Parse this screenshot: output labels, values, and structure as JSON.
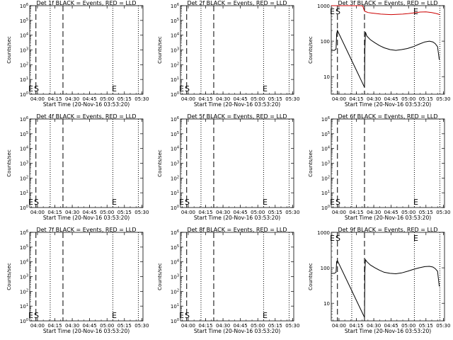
{
  "figure": {
    "line_colors": {
      "events": "#000000",
      "lld": "#cc0000"
    },
    "marker_labels": {
      "s": "S",
      "e": "E"
    }
  },
  "chart_data": [
    {
      "type": "line",
      "title": "Det 1f BLACK = Events, RED = LLD",
      "xlabel": "Start Time (20-Nov-16 03:53:20)",
      "ylabel": "Counts/sec",
      "xlim": [
        "03:53:20",
        "05:31:00"
      ],
      "xticks": [
        "04:00",
        "04:15",
        "04:30",
        "04:45",
        "05:00",
        "05:15",
        "05:30"
      ],
      "ylim": [
        1,
        1000000
      ],
      "yscale": "log",
      "yticks": [
        "10^0",
        "10^1",
        "10^2",
        "10^3",
        "10^4",
        "10^5",
        "10^6"
      ],
      "vlines": {
        "dashed": [
          "03:58:40",
          "04:22:00"
        ],
        "dotted": [
          "04:11:00",
          "05:05:00",
          "05:27:00"
        ]
      },
      "markers": {
        "s": "03:57:00",
        "e": "05:06:00"
      },
      "series": []
    },
    {
      "type": "line",
      "title": "Det 2f BLACK = Events, RED = LLD",
      "xlabel": "Start Time (20-Nov-16 03:53:20)",
      "ylabel": "Counts/sec",
      "xlim": [
        "03:53:20",
        "05:31:00"
      ],
      "xticks": [
        "04:00",
        "04:15",
        "04:30",
        "04:45",
        "05:00",
        "05:15",
        "05:30"
      ],
      "ylim": [
        1,
        1000000
      ],
      "yscale": "log",
      "yticks": [
        "10^0",
        "10^1",
        "10^2",
        "10^3",
        "10^4",
        "10^5",
        "10^6"
      ],
      "vlines": {
        "dashed": [
          "03:58:40",
          "04:22:00"
        ],
        "dotted": [
          "04:11:00",
          "05:05:00",
          "05:27:00"
        ]
      },
      "markers": {
        "s": "03:57:00",
        "e": "05:06:00"
      },
      "series": []
    },
    {
      "type": "line",
      "title": "Det 3f BLACK = Events, RED = LLD",
      "xlabel": "Start Time (20-Nov-16 03:53:20)",
      "ylabel": "Counts/sec",
      "xlim": [
        "03:53:20",
        "05:31:00"
      ],
      "xticks": [
        "04:00",
        "04:15",
        "04:30",
        "04:45",
        "05:00",
        "05:15",
        "05:30"
      ],
      "ylim": [
        3.2,
        1000
      ],
      "yscale": "log",
      "yticks": [
        "10",
        "100",
        "1000"
      ],
      "vlines": {
        "dashed": [
          "03:58:40",
          "04:22:00"
        ],
        "dotted": [
          "04:11:00",
          "05:05:00",
          "05:27:00"
        ]
      },
      "markers": {
        "s": "03:57:00",
        "e": "05:06:00"
      },
      "series": [
        {
          "color": "#cc0000",
          "x": [
            "03:53:20",
            "03:55:00",
            "03:57:00",
            "03:58:30",
            "04:02:00",
            "04:05:00",
            "04:08:00",
            "04:10:00",
            "04:13:00",
            "04:16:00",
            "04:19:00",
            "04:20:30",
            "04:22:00",
            "04:23:00",
            "04:25:00",
            "04:28:00",
            "04:32:00",
            "04:36:00",
            "04:40:00",
            "04:45:00",
            "04:50:00",
            "04:55:00",
            "05:00:00",
            "05:05:00",
            "05:10:00",
            "05:15:00",
            "05:20:00",
            "05:24:00",
            "05:27:00"
          ],
          "y": [
            1000,
            1000,
            1000,
            1000,
            1000,
            1000,
            1000,
            1000,
            1000,
            1000,
            1000,
            980,
            700,
            680,
            640,
            620,
            600,
            580,
            570,
            560,
            570,
            580,
            600,
            630,
            660,
            670,
            640,
            600,
            560
          ]
        },
        {
          "color": "#000000",
          "x": [
            "03:53:20",
            "03:56:00",
            "03:57:30",
            "03:58:00",
            "03:58:40",
            "04:22:00",
            "04:22:20",
            "04:22:50",
            "04:24:00",
            "04:27:00",
            "04:31:00",
            "04:35:00",
            "04:39:00",
            "04:44:00",
            "04:49:00",
            "04:54:00",
            "04:59:00",
            "05:04:00",
            "05:09:00",
            "05:14:00",
            "05:18:00",
            "05:21:00",
            "05:23:00",
            "05:25:00",
            "05:26:30"
          ],
          "y": [
            55,
            55,
            60,
            160,
            200,
            5,
            60,
            180,
            140,
            110,
            90,
            75,
            65,
            58,
            55,
            58,
            62,
            70,
            82,
            95,
            100,
            95,
            85,
            70,
            30
          ]
        }
      ]
    },
    {
      "type": "line",
      "title": "Det 4f BLACK = Events, RED = LLD",
      "xlabel": "Start Time (20-Nov-16 03:53:20)",
      "ylabel": "Counts/sec",
      "xlim": [
        "03:53:20",
        "05:31:00"
      ],
      "xticks": [
        "04:00",
        "04:15",
        "04:30",
        "04:45",
        "05:00",
        "05:15",
        "05:30"
      ],
      "ylim": [
        1,
        1000000
      ],
      "yscale": "log",
      "yticks": [
        "10^0",
        "10^1",
        "10^2",
        "10^3",
        "10^4",
        "10^5",
        "10^6"
      ],
      "vlines": {
        "dashed": [
          "03:58:40",
          "04:22:00"
        ],
        "dotted": [
          "04:11:00",
          "05:05:00",
          "05:27:00"
        ]
      },
      "markers": {
        "s": "03:57:00",
        "e": "05:06:00"
      },
      "series": []
    },
    {
      "type": "line",
      "title": "Det 5f BLACK = Events, RED = LLD",
      "xlabel": "Start Time (20-Nov-16 03:53:20)",
      "ylabel": "Counts/sec",
      "xlim": [
        "03:53:20",
        "05:31:00"
      ],
      "xticks": [
        "04:00",
        "04:15",
        "04:30",
        "04:45",
        "05:00",
        "05:15",
        "05:30"
      ],
      "ylim": [
        1,
        1000000
      ],
      "yscale": "log",
      "yticks": [
        "10^0",
        "10^1",
        "10^2",
        "10^3",
        "10^4",
        "10^5",
        "10^6"
      ],
      "vlines": {
        "dashed": [
          "03:58:40",
          "04:22:00"
        ],
        "dotted": [
          "04:11:00",
          "05:05:00",
          "05:27:00"
        ]
      },
      "markers": {
        "s": "03:57:00",
        "e": "05:06:00"
      },
      "series": []
    },
    {
      "type": "line",
      "title": "Det 6f BLACK = Events, RED = LLD",
      "xlabel": "Start Time (20-Nov-16 03:53:20)",
      "ylabel": "Counts/sec",
      "xlim": [
        "03:53:20",
        "05:31:00"
      ],
      "xticks": [
        "04:00",
        "04:15",
        "04:30",
        "04:45",
        "05:00",
        "05:15",
        "05:30"
      ],
      "ylim": [
        1,
        1000000
      ],
      "yscale": "log",
      "yticks": [
        "10^0",
        "10^1",
        "10^2",
        "10^3",
        "10^4",
        "10^5",
        "10^6"
      ],
      "vlines": {
        "dashed": [
          "03:58:40",
          "04:22:00"
        ],
        "dotted": [
          "04:11:00",
          "05:05:00",
          "05:27:00"
        ]
      },
      "markers": {
        "s": "03:57:00",
        "e": "05:06:00"
      },
      "series": []
    },
    {
      "type": "line",
      "title": "Det 7f BLACK = Events, RED = LLD",
      "xlabel": "Start Time (20-Nov-16 03:53:20)",
      "ylabel": "Counts/sec",
      "xlim": [
        "03:53:20",
        "05:31:00"
      ],
      "xticks": [
        "04:00",
        "04:15",
        "04:30",
        "04:45",
        "05:00",
        "05:15",
        "05:30"
      ],
      "ylim": [
        1,
        1000000
      ],
      "yscale": "log",
      "yticks": [
        "10^0",
        "10^1",
        "10^2",
        "10^3",
        "10^4",
        "10^5",
        "10^6"
      ],
      "vlines": {
        "dashed": [
          "03:58:40",
          "04:22:00"
        ],
        "dotted": [
          "04:11:00",
          "05:05:00",
          "05:27:00"
        ]
      },
      "markers": {
        "s": "03:57:00",
        "e": "05:06:00"
      },
      "series": []
    },
    {
      "type": "line",
      "title": "Det 8f BLACK = Events, RED = LLD",
      "xlabel": "Start Time (20-Nov-16 03:53:20)",
      "ylabel": "Counts/sec",
      "xlim": [
        "03:53:20",
        "05:31:00"
      ],
      "xticks": [
        "04:00",
        "04:15",
        "04:30",
        "04:45",
        "05:00",
        "05:15",
        "05:30"
      ],
      "ylim": [
        1,
        1000000
      ],
      "yscale": "log",
      "yticks": [
        "10^0",
        "10^1",
        "10^2",
        "10^3",
        "10^4",
        "10^5",
        "10^6"
      ],
      "vlines": {
        "dashed": [
          "03:58:40",
          "04:22:00"
        ],
        "dotted": [
          "04:11:00",
          "05:05:00",
          "05:27:00"
        ]
      },
      "markers": {
        "s": "03:57:00",
        "e": "05:06:00"
      },
      "series": []
    },
    {
      "type": "line",
      "title": "Det 9f BLACK = Events, RED = LLD",
      "xlabel": "Start Time (20-Nov-16 03:53:20)",
      "ylabel": "Counts/sec",
      "xlim": [
        "03:53:20",
        "05:31:00"
      ],
      "xticks": [
        "04:00",
        "04:15",
        "04:30",
        "04:45",
        "05:00",
        "05:15",
        "05:30"
      ],
      "ylim": [
        3.2,
        1000
      ],
      "yscale": "log",
      "yticks": [
        "10",
        "100",
        "1000"
      ],
      "vlines": {
        "dashed": [
          "03:58:40",
          "04:22:00"
        ],
        "dotted": [
          "04:11:00",
          "05:05:00",
          "05:27:00"
        ]
      },
      "markers": {
        "s": "03:57:00",
        "e": "05:06:00"
      },
      "series": [
        {
          "color": "#000000",
          "x": [
            "03:53:20",
            "03:56:00",
            "03:57:30",
            "03:58:00",
            "03:58:40",
            "04:22:00",
            "04:22:20",
            "04:22:50",
            "04:24:00",
            "04:27:00",
            "04:31:00",
            "04:35:00",
            "04:39:00",
            "04:44:00",
            "04:49:00",
            "04:54:00",
            "04:59:00",
            "05:04:00",
            "05:09:00",
            "05:14:00",
            "05:18:00",
            "05:21:00",
            "05:23:00",
            "05:25:00",
            "05:26:30"
          ],
          "y": [
            70,
            70,
            75,
            150,
            160,
            4,
            80,
            170,
            150,
            120,
            100,
            85,
            75,
            70,
            68,
            72,
            80,
            90,
            100,
            108,
            110,
            105,
            95,
            80,
            30
          ]
        }
      ]
    }
  ]
}
